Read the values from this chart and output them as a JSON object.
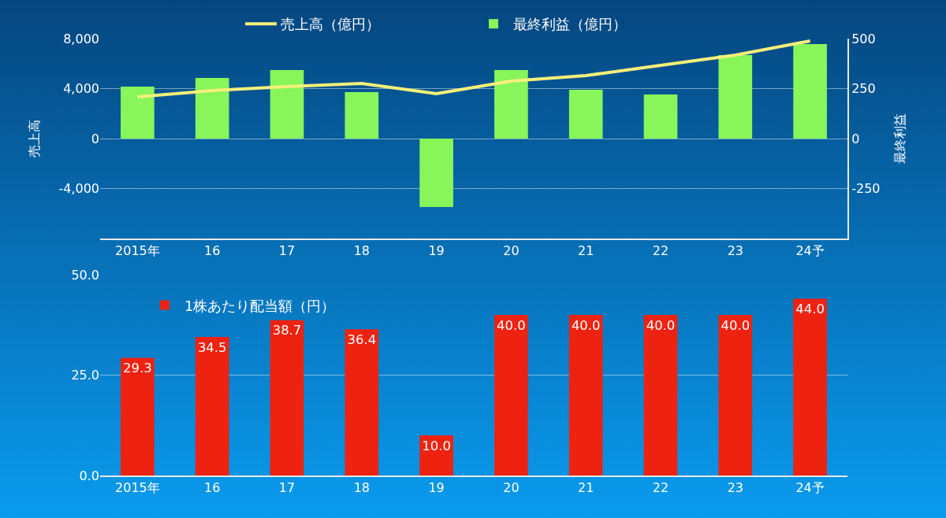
{
  "chart_data": [
    {
      "type": "bar",
      "ylabel": "売上高",
      "y2label": "最終利益",
      "categories": [
        "2015年",
        "16",
        "17",
        "18",
        "19",
        "20",
        "21",
        "22",
        "23",
        "24予"
      ],
      "series": [
        {
          "name": "売上高（億円）",
          "type": "line",
          "color": "#f5f07a",
          "values": [
            3340,
            3840,
            4160,
            4410,
            3590,
            4600,
            5040,
            5860,
            6680,
            7810
          ]
        },
        {
          "name": "最終利益（億円）",
          "axis": "y2",
          "color": "#88f55a",
          "values": [
            260,
            303,
            343,
            232,
            -343,
            343,
            244,
            220,
            417,
            472
          ]
        }
      ],
      "ylim": [
        -8000,
        8000
      ],
      "yticks": [
        {
          "value": 8000,
          "label": "8,000"
        },
        {
          "value": 4000,
          "label": "4,000"
        },
        0,
        {
          "value": -4000,
          "label": "-4,000"
        }
      ],
      "y2lim": [
        -500,
        500
      ],
      "y2ticks": [
        500,
        250,
        0,
        -250
      ],
      "grid": "y",
      "legend": "top"
    },
    {
      "type": "bar",
      "categories": [
        "2015年",
        "16",
        "17",
        "18",
        "19",
        "20",
        "21",
        "22",
        "23",
        "24予"
      ],
      "series": [
        {
          "name": "1株あたり配当額（円）",
          "color": "#ee2211",
          "values": [
            29.3,
            34.5,
            38.7,
            36.4,
            10.0,
            40.0,
            40.0,
            40.0,
            40.0,
            44.0
          ],
          "value_labels": [
            "29.3",
            "34.5",
            "38.7",
            "36.4",
            "10.0",
            "40.0",
            "40.0",
            "40.0",
            "40.0",
            "44.0"
          ]
        }
      ],
      "ylim": [
        0,
        50
      ],
      "yticks": [
        {
          "value": 0,
          "label": "0.0"
        },
        {
          "value": 25,
          "label": "25.0"
        },
        {
          "value": 50,
          "label": "50.0"
        }
      ],
      "grid": "y",
      "legend": "top left"
    }
  ]
}
